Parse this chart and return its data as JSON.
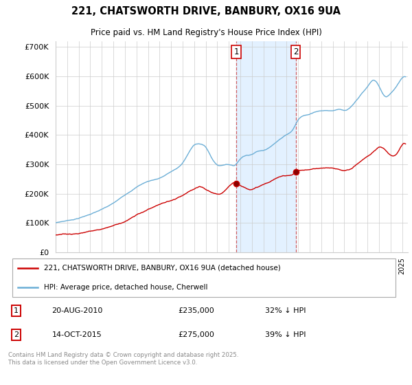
{
  "title": "221, CHATSWORTH DRIVE, BANBURY, OX16 9UA",
  "subtitle": "Price paid vs. HM Land Registry's House Price Index (HPI)",
  "ylim": [
    0,
    720000
  ],
  "yticks": [
    0,
    100000,
    200000,
    300000,
    400000,
    500000,
    600000,
    700000
  ],
  "ytick_labels": [
    "£0",
    "£100K",
    "£200K",
    "£300K",
    "£400K",
    "£500K",
    "£600K",
    "£700K"
  ],
  "hpi_color": "#6baed6",
  "price_color": "#cc0000",
  "sale1_date_num": 2010.64,
  "sale1_price": 235000,
  "sale1_label": "20-AUG-2010",
  "sale1_amount": "£235,000",
  "sale1_pct": "32% ↓ HPI",
  "sale2_date_num": 2015.79,
  "sale2_price": 275000,
  "sale2_label": "14-OCT-2015",
  "sale2_amount": "£275,000",
  "sale2_pct": "39% ↓ HPI",
  "legend_label_price": "221, CHATSWORTH DRIVE, BANBURY, OX16 9UA (detached house)",
  "legend_label_hpi": "HPI: Average price, detached house, Cherwell",
  "footer": "Contains HM Land Registry data © Crown copyright and database right 2025.\nThis data is licensed under the Open Government Licence v3.0.",
  "xmin": 1995.0,
  "xmax": 2025.5,
  "span_color": "#ddeeff",
  "vline_color": "#cc4444"
}
